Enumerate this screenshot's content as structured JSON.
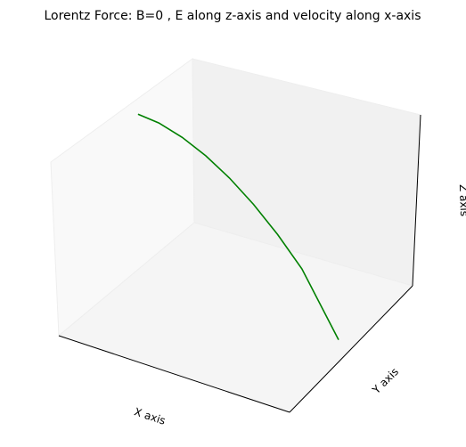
{
  "chart_data": {
    "type": "line3d",
    "title": "Lorentz Force: B=0 , E along z-axis and velocity along x-axis",
    "xlabel": "X axis",
    "ylabel": "Y axis",
    "zlabel": "Z axis",
    "color": "#008000",
    "x": [
      0.11,
      0.2,
      0.3,
      0.4,
      0.5,
      0.6,
      0.7,
      0.8,
      0.947
    ],
    "z": [
      0.96,
      0.949,
      0.91,
      0.848,
      0.764,
      0.657,
      0.527,
      0.374,
      0.03
    ],
    "xlim": [
      0,
      1
    ],
    "zlim": [
      0,
      1
    ]
  }
}
